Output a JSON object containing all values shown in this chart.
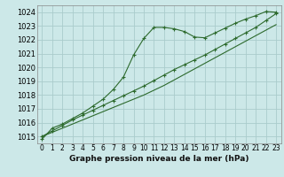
{
  "background_color": "#cce8e8",
  "grid_color": "#aacccc",
  "line_color": "#2d6a2d",
  "title": "Graphe pression niveau de la mer (hPa)",
  "xlim": [
    -0.5,
    23.5
  ],
  "ylim": [
    1014.5,
    1024.5
  ],
  "yticks": [
    1015,
    1016,
    1017,
    1018,
    1019,
    1020,
    1021,
    1022,
    1023,
    1024
  ],
  "xticks": [
    0,
    1,
    2,
    3,
    4,
    5,
    6,
    7,
    8,
    9,
    10,
    11,
    12,
    13,
    14,
    15,
    16,
    17,
    18,
    19,
    20,
    21,
    22,
    23
  ],
  "x_labels": [
    "0",
    "1",
    "2",
    "3",
    "4",
    "5",
    "6",
    "7",
    "8",
    "9",
    "10",
    "11",
    "12",
    "13",
    "14",
    "15",
    "16",
    "17",
    "18",
    "19",
    "20",
    "21",
    "22",
    "23"
  ],
  "line1_x": [
    0,
    1,
    2,
    3,
    4,
    5,
    6,
    7,
    8,
    9,
    10,
    11,
    12,
    13,
    14,
    15,
    16,
    17,
    18,
    19,
    20,
    21,
    22,
    23
  ],
  "line1_y": [
    1014.8,
    1015.6,
    1015.9,
    1016.3,
    1016.7,
    1017.2,
    1017.7,
    1018.4,
    1019.3,
    1020.9,
    1022.1,
    1022.9,
    1022.9,
    1022.8,
    1022.6,
    1022.2,
    1022.15,
    1022.5,
    1022.85,
    1023.2,
    1023.5,
    1023.75,
    1024.05,
    1024.0
  ],
  "line2_x": [
    0,
    1,
    2,
    3,
    4,
    5,
    6,
    7,
    8,
    9,
    10,
    11,
    12,
    13,
    14,
    15,
    16,
    17,
    18,
    19,
    20,
    21,
    22,
    23
  ],
  "line2_y": [
    1015.0,
    1015.3,
    1015.6,
    1015.9,
    1016.2,
    1016.5,
    1016.8,
    1017.1,
    1017.4,
    1017.7,
    1018.0,
    1018.35,
    1018.7,
    1019.1,
    1019.5,
    1019.9,
    1020.3,
    1020.7,
    1021.1,
    1021.5,
    1021.9,
    1022.3,
    1022.7,
    1023.1
  ],
  "line3_x": [
    0,
    1,
    2,
    3,
    4,
    5,
    6,
    7,
    8,
    9,
    10,
    11,
    12,
    13,
    14,
    15,
    16,
    17,
    18,
    19,
    20,
    21,
    22,
    23
  ],
  "line3_y": [
    1015.0,
    1015.4,
    1015.8,
    1016.2,
    1016.55,
    1016.9,
    1017.25,
    1017.6,
    1017.95,
    1018.3,
    1018.65,
    1019.05,
    1019.45,
    1019.85,
    1020.2,
    1020.55,
    1020.9,
    1021.3,
    1021.7,
    1022.1,
    1022.5,
    1022.9,
    1023.4,
    1023.9
  ]
}
